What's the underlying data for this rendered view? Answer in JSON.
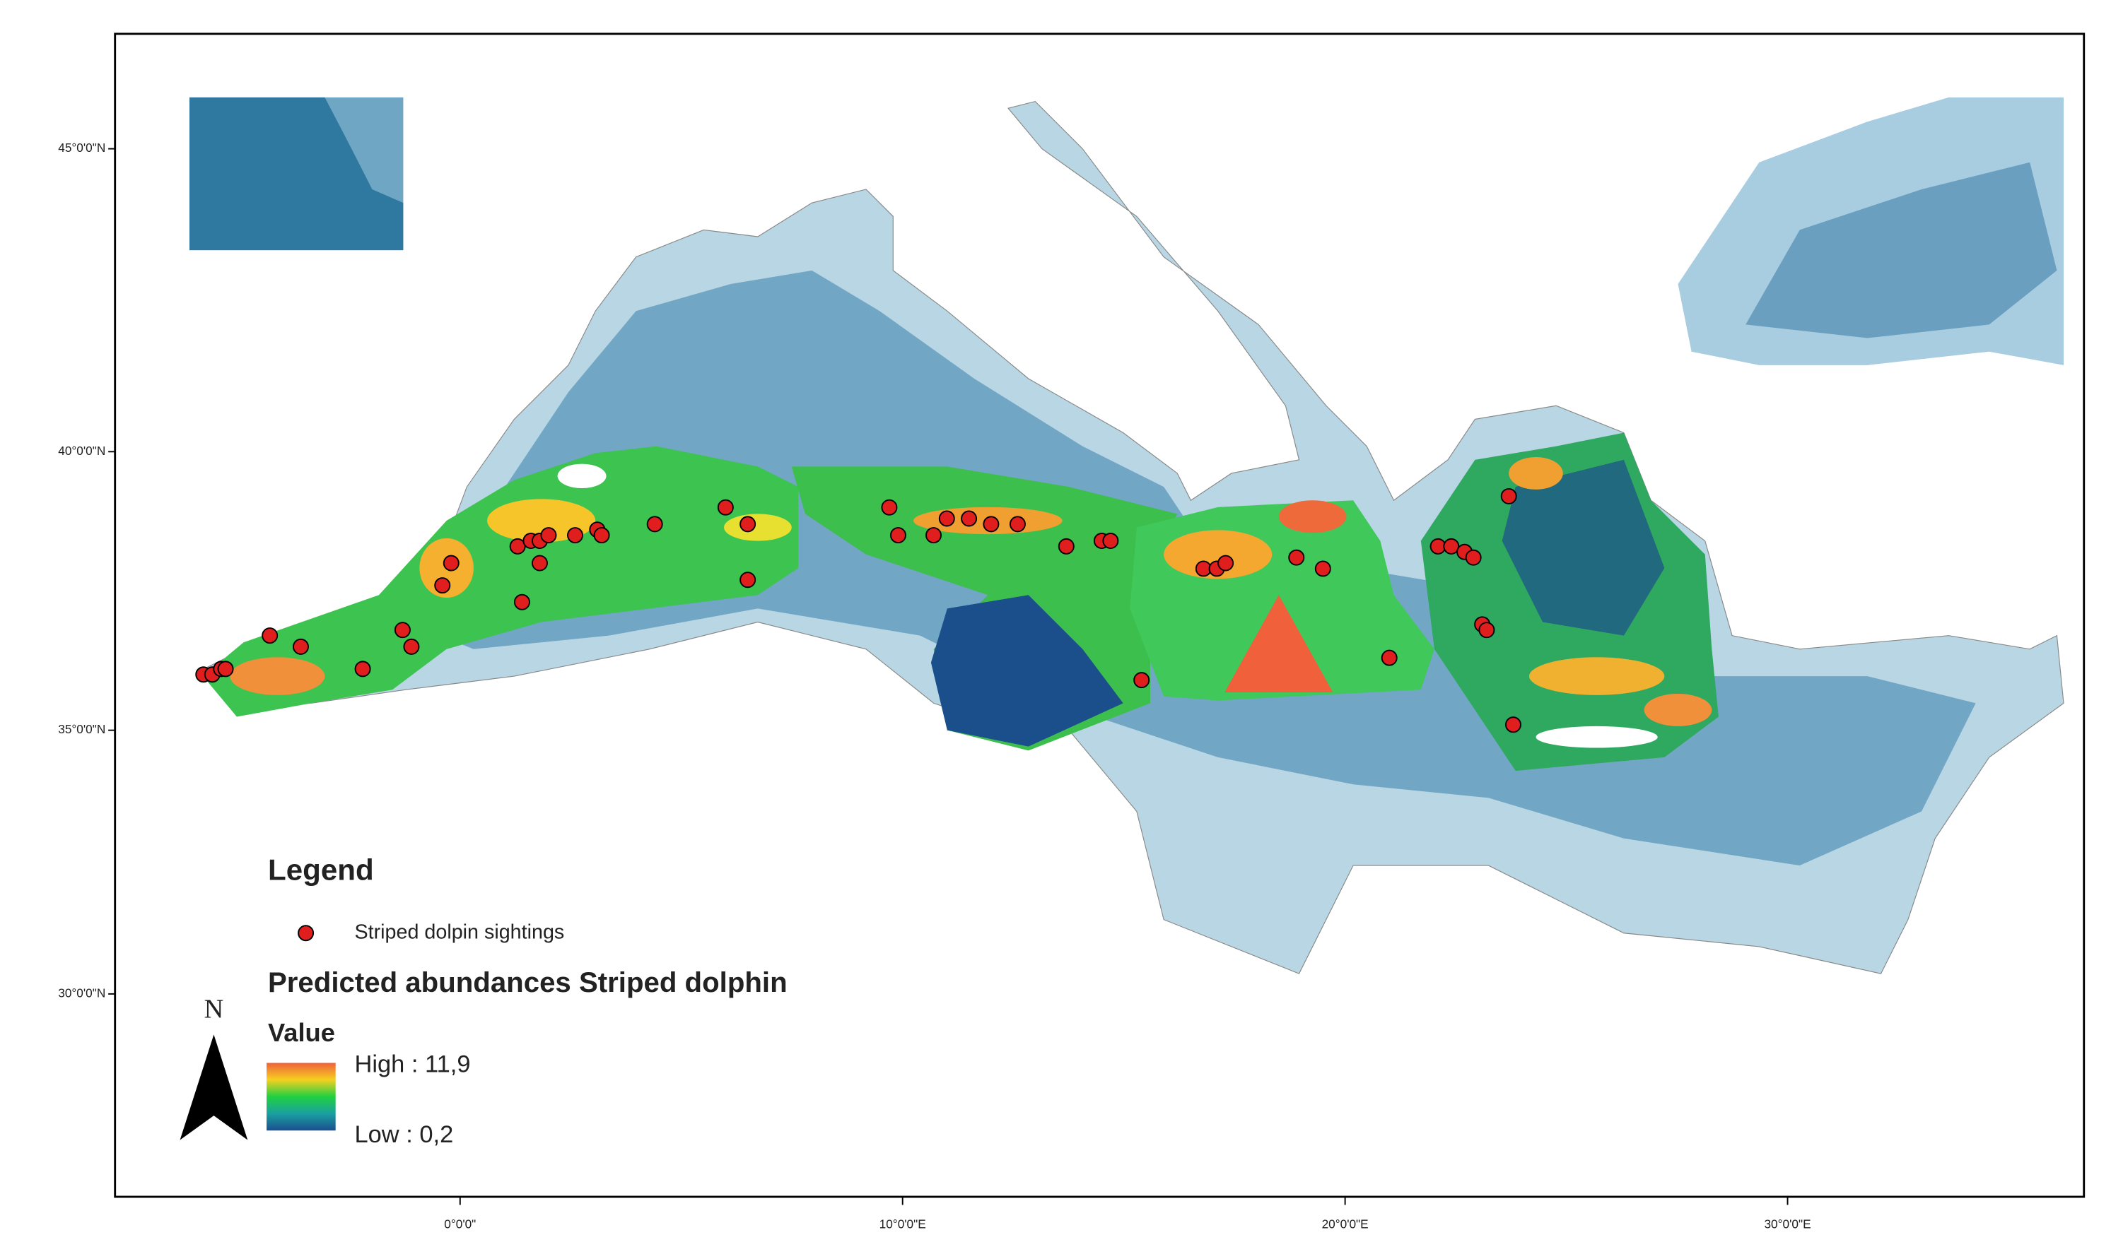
{
  "map": {
    "type": "map",
    "xticks": [
      {
        "value": 0,
        "label": "0°0'0\""
      },
      {
        "value": 10,
        "label": "10°0'0\"E"
      },
      {
        "value": 20,
        "label": "20°0'0\"E"
      },
      {
        "value": 30,
        "label": "30°0'0\"E"
      }
    ],
    "yticks": [
      {
        "value": 45,
        "label": "45°0'0\"N"
      },
      {
        "value": 40,
        "label": "40°0'0\"N"
      },
      {
        "value": 35,
        "label": "35°0'0\"N"
      },
      {
        "value": 30,
        "label": "30°0'0\"N"
      }
    ],
    "sightings": {
      "name": "Striped dolpin sightings",
      "color": "#e01e1e",
      "lon": [
        -5.8,
        -5.6,
        -5.4,
        -5.3,
        -4.3,
        -3.6,
        -2.2,
        -1.3,
        -1.1,
        -0.4,
        -0.2,
        1.4,
        1.3,
        1.6,
        1.8,
        2.0,
        1.8,
        2.6,
        3.1,
        3.2,
        4.4,
        6.0,
        6.5,
        6.5,
        9.7,
        9.9,
        10.7,
        11.0,
        11.5,
        12.0,
        12.6,
        13.7,
        14.5,
        14.7,
        15.4,
        16.8,
        17.1,
        17.3,
        18.9,
        19.5,
        21.0,
        22.1,
        22.4,
        22.7,
        22.9,
        23.1,
        23.2,
        23.7,
        23.8
      ],
      "lat": [
        36.0,
        36.0,
        36.1,
        36.1,
        36.7,
        36.5,
        36.1,
        36.8,
        36.5,
        37.6,
        38.0,
        37.3,
        38.3,
        38.4,
        38.4,
        38.5,
        38.0,
        38.5,
        38.6,
        38.5,
        38.7,
        39.0,
        38.7,
        37.7,
        39.0,
        38.5,
        38.5,
        38.8,
        38.8,
        38.7,
        38.7,
        38.3,
        38.4,
        38.4,
        35.9,
        37.9,
        37.9,
        38.0,
        38.1,
        37.9,
        36.3,
        38.3,
        38.3,
        38.2,
        38.1,
        36.9,
        36.8,
        39.2,
        35.1
      ]
    },
    "legend": {
      "title": "Legend",
      "layer_title": "Predicted abundances Striped dolphin",
      "field": "Value",
      "high_label": "High : 11,9",
      "low_label": "Low : 0,2",
      "colors": [
        "#f0603a",
        "#f5d020",
        "#20d040",
        "#1aa0a0",
        "#1a4f90"
      ]
    },
    "north": "N"
  }
}
